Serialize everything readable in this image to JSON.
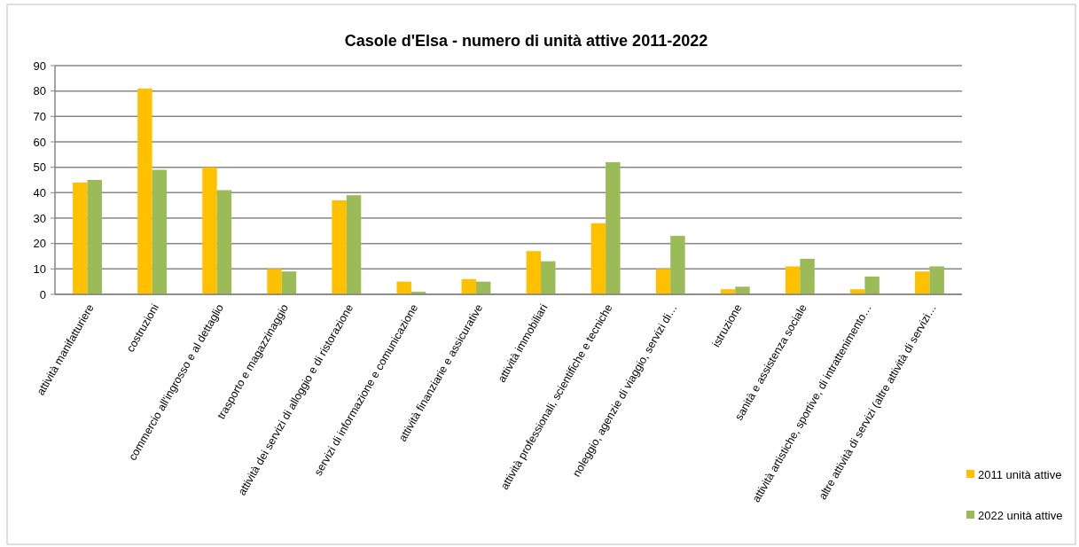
{
  "chart_data": {
    "type": "bar",
    "title": "Casole d'Elsa - numero di unità attive 2011-2022",
    "categories": [
      "attività manifatturiere",
      "costruzioni",
      "commercio all'ingrosso e al dettaglio",
      "trasporto e magazzinaggio",
      "attività dei servizi di alloggio e di ristorazione",
      "servizi di informazione e comunicazione",
      "attività finanziarie e assicurative",
      "attività immobiliari",
      "attività professionali, scientifiche e tecniche",
      "noleggio, agenzie di viaggio, servizi di…",
      "istruzione",
      "sanità e assistenza sociale",
      "attività artistiche, sportive, di intrattenimento…",
      "altre attività di servizi (altre attività di servizi…"
    ],
    "series": [
      {
        "name": "2011 unità attive",
        "color": "#ffc000",
        "values": [
          44,
          81,
          50,
          10,
          37,
          5,
          6,
          17,
          28,
          10,
          2,
          11,
          2,
          9
        ]
      },
      {
        "name": "2022 unità attive",
        "color": "#9bbb59",
        "values": [
          45,
          49,
          41,
          9,
          39,
          1,
          5,
          13,
          52,
          23,
          3,
          14,
          7,
          11
        ]
      }
    ],
    "ylim": [
      0,
      90
    ],
    "yticks": [
      0,
      10,
      20,
      30,
      40,
      50,
      60,
      70,
      80,
      90
    ],
    "grid": "y",
    "legend": "bottom right"
  }
}
